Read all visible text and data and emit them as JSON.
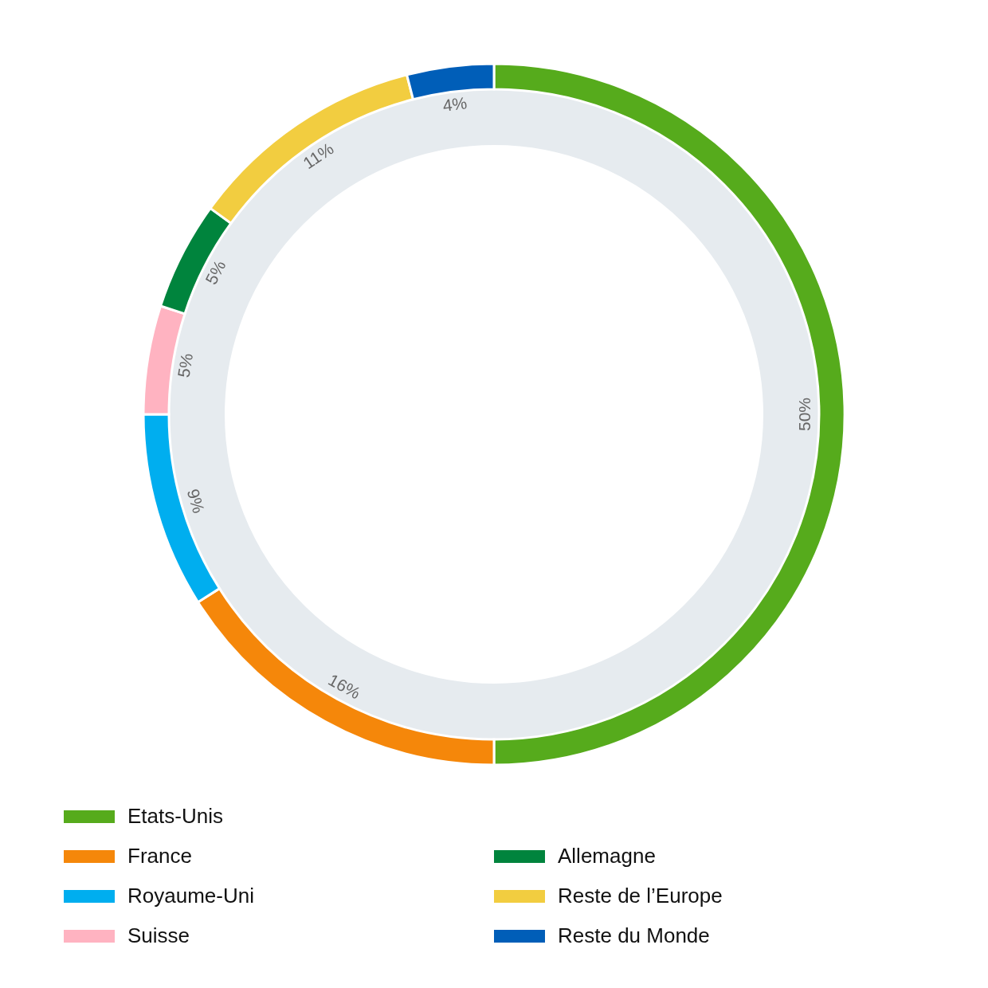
{
  "chart_data": {
    "type": "donut",
    "categories": [
      "Etats-Unis",
      "France",
      "Royaume-Uni",
      "Suisse",
      "Allemagne",
      "Reste de l’Europe",
      "Reste du Monde"
    ],
    "values": [
      50,
      16,
      9,
      5,
      5,
      11,
      4
    ],
    "colors": [
      "#56ab1c",
      "#f5870a",
      "#00aeef",
      "#ffb3c1",
      "#00843d",
      "#f2cd40",
      "#005eb8"
    ],
    "value_labels": [
      "50%",
      "16%",
      "9%",
      "5%",
      "5%",
      "11%",
      "4%"
    ],
    "legend": "bottom"
  }
}
